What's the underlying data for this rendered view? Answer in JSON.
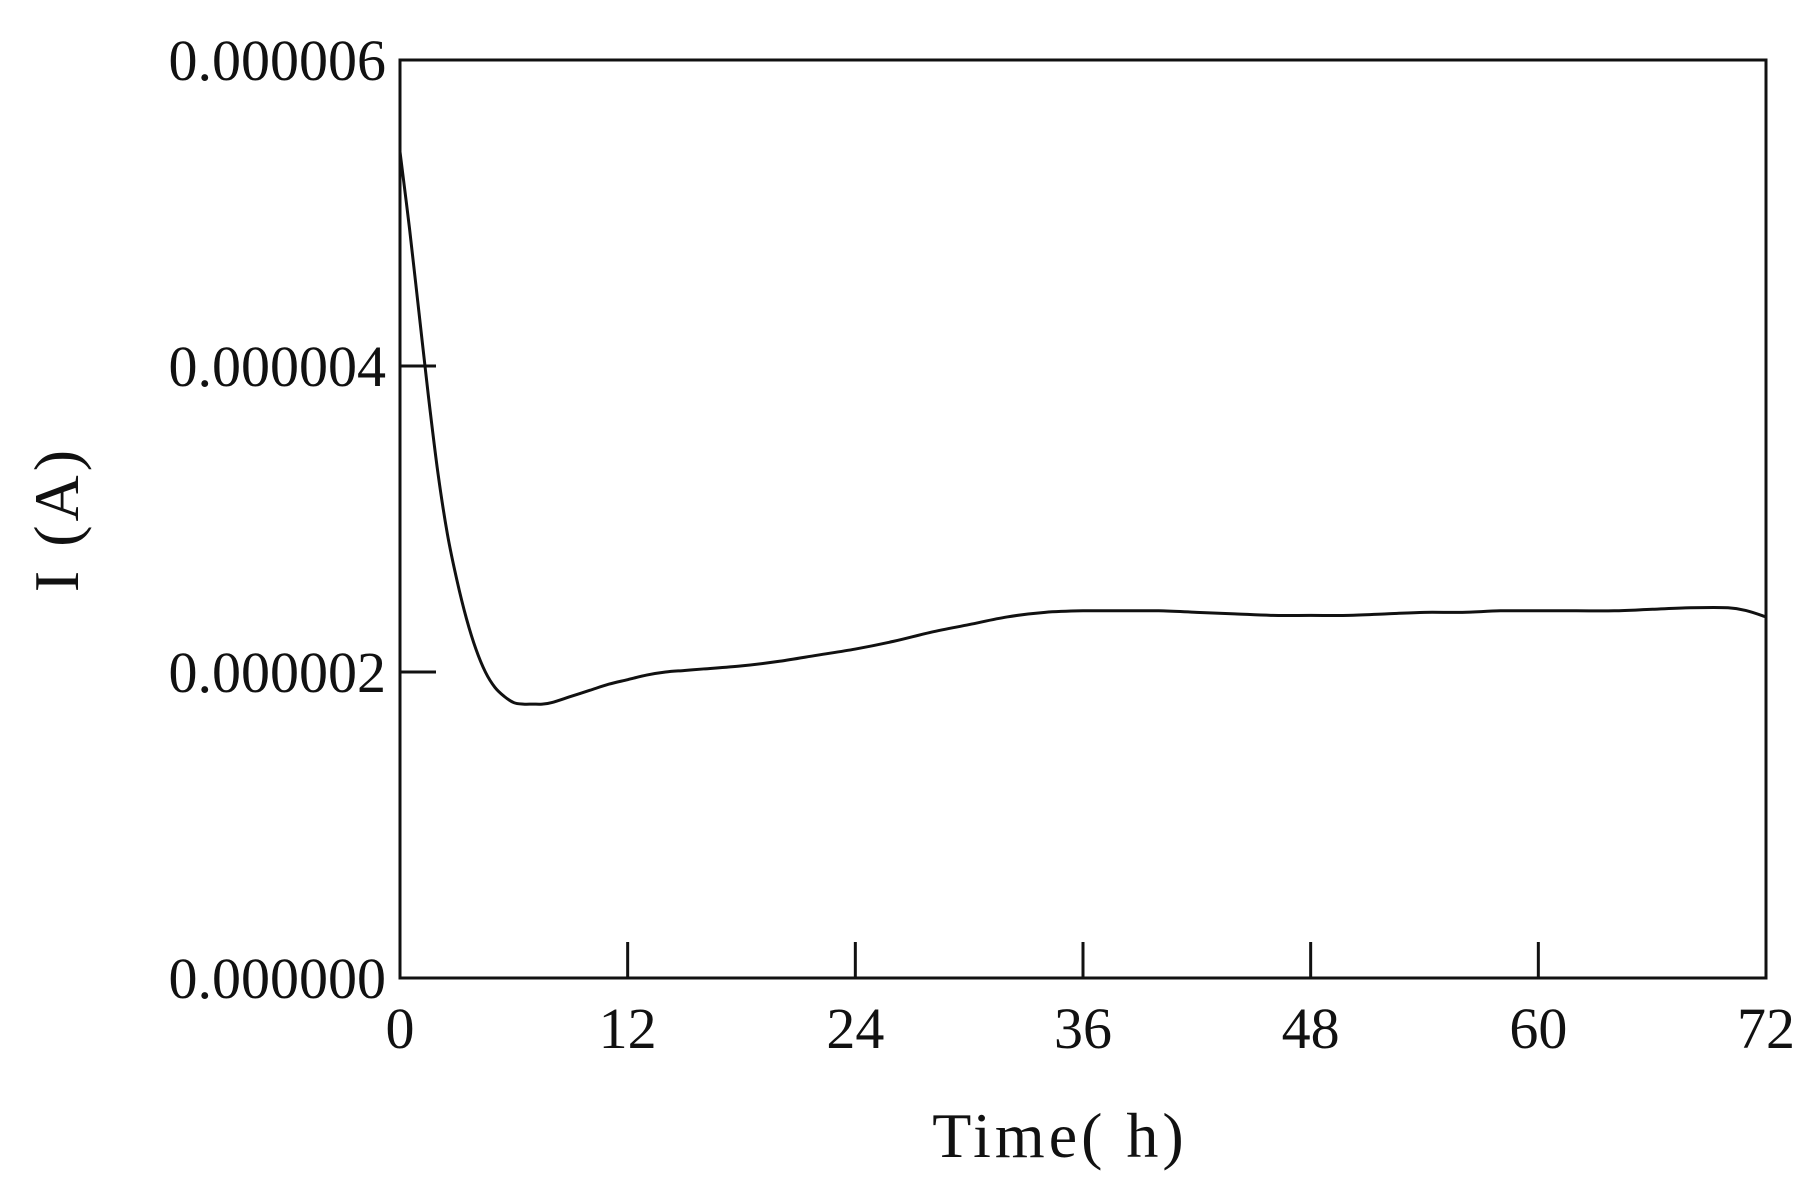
{
  "chart_data": {
    "type": "line",
    "title": "",
    "xlabel": "Time( h)",
    "ylabel": "I (A)",
    "xlim": [
      0,
      72
    ],
    "ylim": [
      0,
      6e-06
    ],
    "xticks": [
      "0",
      "12",
      "24",
      "36",
      "48",
      "60",
      "72"
    ],
    "yticks": [
      "0.000000",
      "0.000002",
      "0.000004",
      "0.000006"
    ],
    "grid": false,
    "legend": "none",
    "line_color": "#111111",
    "series": [
      {
        "x": [
          0,
          0.5,
          1,
          1.5,
          2,
          2.5,
          3,
          3.5,
          4,
          4.5,
          5,
          5.5,
          6,
          6.5,
          7,
          7.5,
          8,
          9,
          10,
          11,
          12,
          13,
          14,
          15,
          16,
          18,
          20,
          22,
          24,
          26,
          28,
          30,
          32,
          34,
          36,
          38,
          40,
          42,
          44,
          46,
          48,
          50,
          52,
          54,
          56,
          58,
          60,
          62,
          64,
          66,
          68,
          70,
          71,
          72
        ],
        "y": [
          5.4e-06,
          4.9e-06,
          4.35e-06,
          3.8e-06,
          3.3e-06,
          2.9e-06,
          2.6e-06,
          2.35e-06,
          2.15e-06,
          2e-06,
          1.9e-06,
          1.84e-06,
          1.8e-06,
          1.79e-06,
          1.79e-06,
          1.79e-06,
          1.8e-06,
          1.84e-06,
          1.88e-06,
          1.92e-06,
          1.95e-06,
          1.98e-06,
          2e-06,
          2.01e-06,
          2.02e-06,
          2.04e-06,
          2.07e-06,
          2.11e-06,
          2.15e-06,
          2.2e-06,
          2.26e-06,
          2.31e-06,
          2.36e-06,
          2.39e-06,
          2.4e-06,
          2.4e-06,
          2.4e-06,
          2.39e-06,
          2.38e-06,
          2.37e-06,
          2.37e-06,
          2.37e-06,
          2.38e-06,
          2.39e-06,
          2.39e-06,
          2.4e-06,
          2.4e-06,
          2.4e-06,
          2.4e-06,
          2.41e-06,
          2.42e-06,
          2.42e-06,
          2.4e-06,
          2.36e-06
        ]
      }
    ]
  }
}
